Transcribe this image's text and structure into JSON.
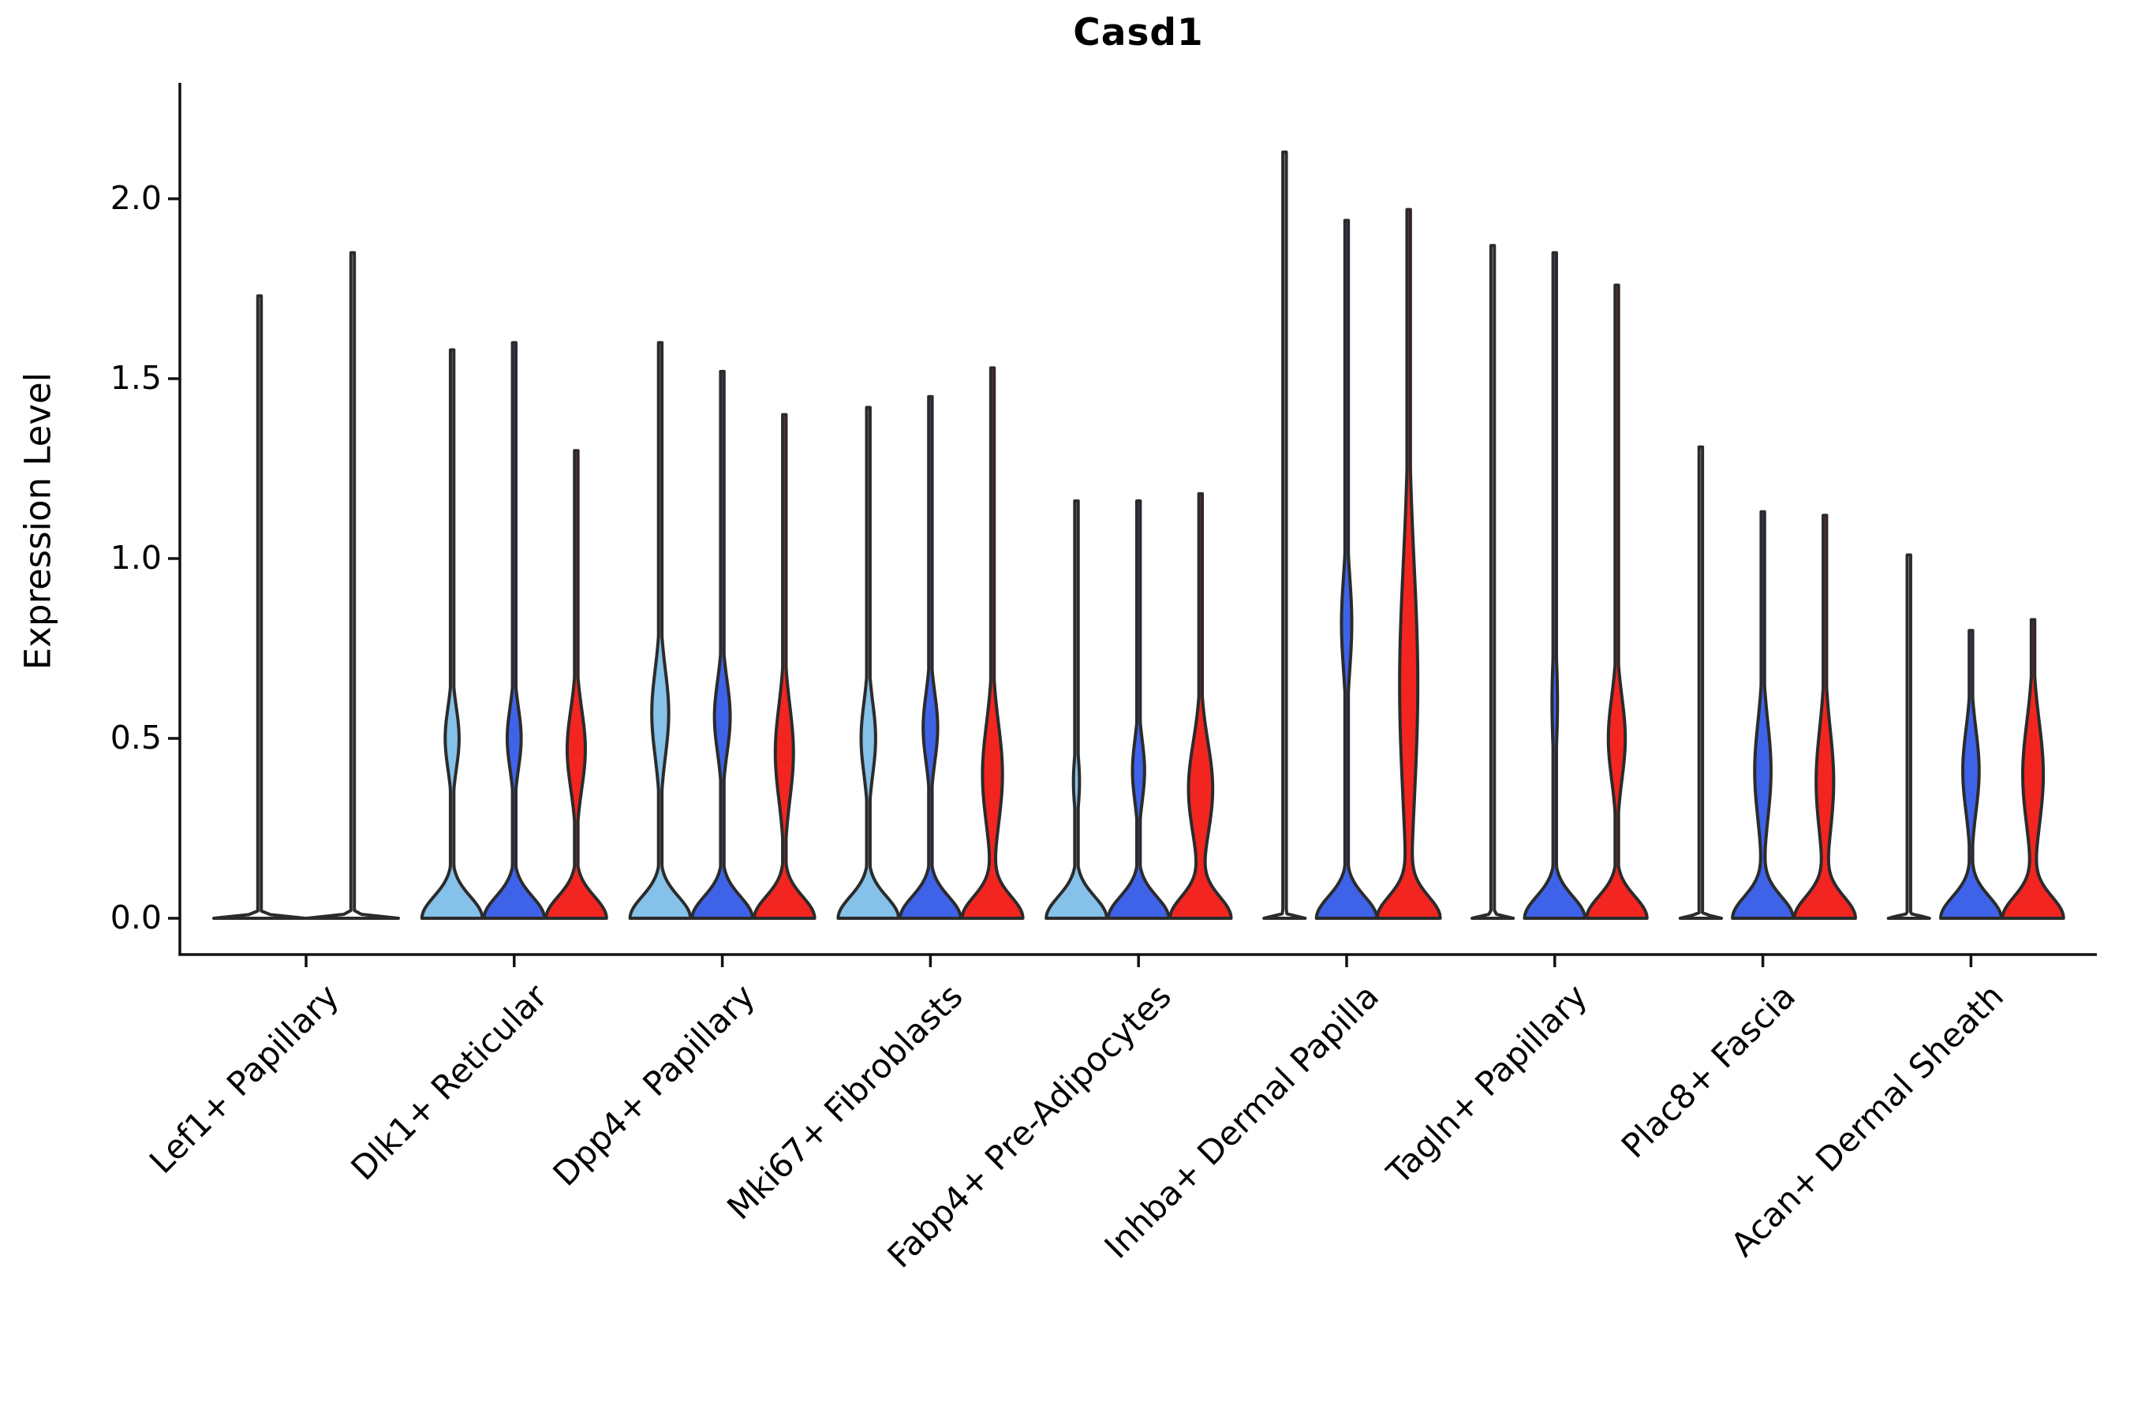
{
  "title": "Casd1",
  "axes": {
    "ylabel": "Expression Level",
    "ytick_labels": [
      "0.0",
      "0.5",
      "1.0",
      "1.5",
      "2.0"
    ],
    "ytick_values": [
      0.0,
      0.5,
      1.0,
      1.5,
      2.0
    ]
  },
  "colors": {
    "light_blue": "#85c1e9",
    "blue": "#3f63e8",
    "red": "#f22520",
    "violin_outline": "#2b2b2b",
    "axis": "#111111",
    "background": "#ffffff"
  },
  "chart_data": {
    "type": "violin",
    "title": "Casd1",
    "xlabel": "",
    "ylabel": "Expression Level",
    "ylim": [
      -0.1,
      2.32
    ],
    "yticks": [
      0.0,
      0.5,
      1.0,
      1.5,
      2.0
    ],
    "grid": false,
    "legend": "none",
    "series_colors": [
      "#85c1e9",
      "#3f63e8",
      "#f22520"
    ],
    "categories": [
      "Lef1+ Papillary",
      "Dlk1+ Reticular",
      "Dpp4+ Papillary",
      "Mki67+ Fibroblasts",
      "Fabp4+ Pre-Adipocytes",
      "Inhba+ Dermal Papilla",
      "Tagln+ Papillary",
      "Plac8+ Fascia",
      "Acan+ Dermal Sheath"
    ],
    "groups": [
      {
        "category": "Lef1+ Papillary",
        "violins": [
          {
            "slot": 0,
            "color": null,
            "max": 1.73,
            "base": {
              "a": 1.0,
              "s": 0.006
            },
            "bulges": []
          },
          {
            "slot": 1,
            "color": null,
            "max": 1.85,
            "base": {
              "a": 1.0,
              "s": 0.006
            },
            "bulges": []
          }
        ]
      },
      {
        "category": "Dlk1+ Reticular",
        "violins": [
          {
            "slot": 0,
            "color": "#85c1e9",
            "max": 1.58,
            "base": {
              "a": 1.0,
              "s": 0.06
            },
            "bulges": [
              {
                "c": 0.5,
                "s": 0.085,
                "a": 0.23
              }
            ]
          },
          {
            "slot": 1,
            "color": "#3f63e8",
            "max": 1.6,
            "base": {
              "a": 1.0,
              "s": 0.06
            },
            "bulges": [
              {
                "c": 0.5,
                "s": 0.085,
                "a": 0.23
              }
            ]
          },
          {
            "slot": 2,
            "color": "#f22520",
            "max": 1.3,
            "base": {
              "a": 1.0,
              "s": 0.06
            },
            "bulges": [
              {
                "c": 0.47,
                "s": 0.11,
                "a": 0.3
              }
            ]
          }
        ]
      },
      {
        "category": "Dpp4+ Papillary",
        "violins": [
          {
            "slot": 0,
            "color": "#85c1e9",
            "max": 1.6,
            "base": {
              "a": 1.0,
              "s": 0.06
            },
            "bulges": [
              {
                "c": 0.57,
                "s": 0.12,
                "a": 0.28
              }
            ]
          },
          {
            "slot": 1,
            "color": "#3f63e8",
            "max": 1.52,
            "base": {
              "a": 1.0,
              "s": 0.06
            },
            "bulges": [
              {
                "c": 0.56,
                "s": 0.1,
                "a": 0.26
              }
            ]
          },
          {
            "slot": 2,
            "color": "#f22520",
            "max": 1.4,
            "base": {
              "a": 1.0,
              "s": 0.06
            },
            "bulges": [
              {
                "c": 0.46,
                "s": 0.13,
                "a": 0.3
              }
            ]
          }
        ]
      },
      {
        "category": "Mki67+ Fibroblasts",
        "violins": [
          {
            "slot": 0,
            "color": "#85c1e9",
            "max": 1.42,
            "base": {
              "a": 1.0,
              "s": 0.06
            },
            "bulges": [
              {
                "c": 0.5,
                "s": 0.1,
                "a": 0.24
              }
            ]
          },
          {
            "slot": 1,
            "color": "#3f63e8",
            "max": 1.45,
            "base": {
              "a": 1.0,
              "s": 0.06
            },
            "bulges": [
              {
                "c": 0.53,
                "s": 0.095,
                "a": 0.24
              }
            ]
          },
          {
            "slot": 2,
            "color": "#f22520",
            "max": 1.53,
            "base": {
              "a": 1.0,
              "s": 0.06
            },
            "bulges": [
              {
                "c": 0.4,
                "s": 0.14,
                "a": 0.33
              }
            ]
          }
        ]
      },
      {
        "category": "Fabp4+ Pre-Adipocytes",
        "violins": [
          {
            "slot": 0,
            "color": "#85c1e9",
            "max": 1.16,
            "base": {
              "a": 1.0,
              "s": 0.06
            },
            "bulges": [
              {
                "c": 0.38,
                "s": 0.07,
                "a": 0.1
              }
            ]
          },
          {
            "slot": 1,
            "color": "#3f63e8",
            "max": 1.16,
            "base": {
              "a": 1.0,
              "s": 0.06
            },
            "bulges": [
              {
                "c": 0.41,
                "s": 0.085,
                "a": 0.2
              }
            ]
          },
          {
            "slot": 2,
            "color": "#f22520",
            "max": 1.18,
            "base": {
              "a": 1.0,
              "s": 0.06
            },
            "bulges": [
              {
                "c": 0.36,
                "s": 0.13,
                "a": 0.4
              }
            ]
          }
        ]
      },
      {
        "category": "Inhba+ Dermal Papilla",
        "violins": [
          {
            "slot": 0,
            "color": null,
            "max": 2.13,
            "base": {
              "a": 0.68,
              "s": 0.006
            },
            "bulges": []
          },
          {
            "slot": 1,
            "color": "#3f63e8",
            "max": 1.94,
            "base": {
              "a": 1.0,
              "s": 0.06
            },
            "bulges": [
              {
                "c": 0.82,
                "s": 0.13,
                "a": 0.17
              }
            ]
          },
          {
            "slot": 2,
            "color": "#f22520",
            "max": 1.97,
            "base": {
              "a": 1.0,
              "s": 0.06
            },
            "bulges": [
              {
                "c": 0.65,
                "s": 0.33,
                "a": 0.3
              }
            ]
          }
        ]
      },
      {
        "category": "Tagln+ Papillary",
        "violins": [
          {
            "slot": 0,
            "color": null,
            "max": 1.87,
            "base": {
              "a": 0.68,
              "s": 0.006
            },
            "bulges": []
          },
          {
            "slot": 1,
            "color": "#3f63e8",
            "max": 1.85,
            "base": {
              "a": 1.0,
              "s": 0.06
            },
            "bulges": [
              {
                "c": 0.6,
                "s": 0.13,
                "a": 0.09
              }
            ]
          },
          {
            "slot": 2,
            "color": "#f22520",
            "max": 1.76,
            "base": {
              "a": 1.0,
              "s": 0.06
            },
            "bulges": [
              {
                "c": 0.5,
                "s": 0.115,
                "a": 0.28
              }
            ]
          }
        ]
      },
      {
        "category": "Plac8+ Fascia",
        "violins": [
          {
            "slot": 0,
            "color": null,
            "max": 1.31,
            "base": {
              "a": 0.68,
              "s": 0.006
            },
            "bulges": []
          },
          {
            "slot": 1,
            "color": "#3f63e8",
            "max": 1.13,
            "base": {
              "a": 1.0,
              "s": 0.06
            },
            "bulges": [
              {
                "c": 0.41,
                "s": 0.135,
                "a": 0.27
              }
            ]
          },
          {
            "slot": 2,
            "color": "#f22520",
            "max": 1.12,
            "base": {
              "a": 1.0,
              "s": 0.06
            },
            "bulges": [
              {
                "c": 0.38,
                "s": 0.145,
                "a": 0.29
              }
            ]
          }
        ]
      },
      {
        "category": "Acan+ Dermal Sheath",
        "violins": [
          {
            "slot": 0,
            "color": null,
            "max": 1.01,
            "base": {
              "a": 0.68,
              "s": 0.006
            },
            "bulges": []
          },
          {
            "slot": 1,
            "color": "#3f63e8",
            "max": 0.8,
            "base": {
              "a": 1.0,
              "s": 0.06
            },
            "bulges": [
              {
                "c": 0.41,
                "s": 0.115,
                "a": 0.27
              }
            ]
          },
          {
            "slot": 2,
            "color": "#f22520",
            "max": 0.83,
            "base": {
              "a": 1.0,
              "s": 0.06
            },
            "bulges": [
              {
                "c": 0.4,
                "s": 0.145,
                "a": 0.34
              }
            ]
          }
        ]
      }
    ]
  }
}
